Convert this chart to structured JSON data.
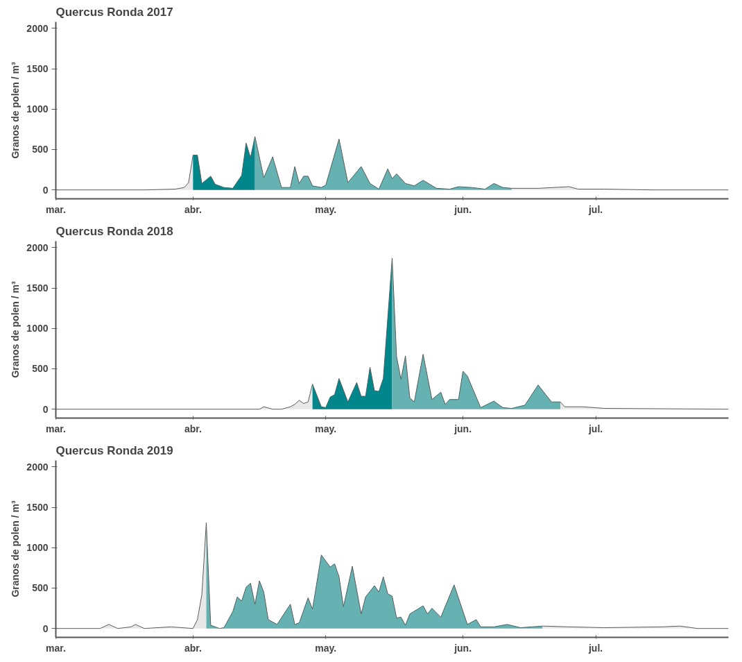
{
  "chart_data": [
    {
      "type": "area",
      "title": "Quercus Ronda 2017",
      "ylabel": "Granos de polen / m³",
      "xlim": [
        "2017-03-01",
        "2017-07-31"
      ],
      "ylim": [
        -110,
        2080
      ],
      "yticks": [
        0,
        500,
        1000,
        1500,
        2000
      ],
      "xticks": [
        {
          "value": "2017-03-01",
          "label": "mar."
        },
        {
          "value": "2017-04-01",
          "label": "abr."
        },
        {
          "value": "2017-05-01",
          "label": "may."
        },
        {
          "value": "2017-06-01",
          "label": "jun."
        },
        {
          "value": "2017-07-01",
          "label": "jul."
        }
      ],
      "series": [
        {
          "color": "#e8e8e8",
          "x": [
            "2017-03-01",
            "2017-03-21",
            "2017-03-28",
            "2017-03-30",
            "2017-03-31",
            "2017-04-01"
          ],
          "values": [
            0,
            0,
            10,
            30,
            90,
            430
          ]
        },
        {
          "color": "#00868b",
          "x": [
            "2017-04-01",
            "2017-04-02",
            "2017-04-03",
            "2017-04-05",
            "2017-04-06",
            "2017-04-08",
            "2017-04-10",
            "2017-04-12",
            "2017-04-13",
            "2017-04-14",
            "2017-04-15"
          ],
          "values": [
            430,
            430,
            80,
            170,
            70,
            30,
            20,
            180,
            580,
            400,
            660
          ]
        },
        {
          "color": "#66b2b2",
          "x": [
            "2017-04-15",
            "2017-04-17",
            "2017-04-19",
            "2017-04-21",
            "2017-04-23",
            "2017-04-24",
            "2017-04-25",
            "2017-04-26",
            "2017-04-27",
            "2017-04-28",
            "2017-04-30",
            "2017-05-01",
            "2017-05-04",
            "2017-05-06",
            "2017-05-09",
            "2017-05-11",
            "2017-05-13",
            "2017-05-15",
            "2017-05-16",
            "2017-05-17",
            "2017-05-19",
            "2017-05-21",
            "2017-05-23",
            "2017-05-26",
            "2017-05-29",
            "2017-05-31",
            "2017-06-03",
            "2017-06-06",
            "2017-06-08",
            "2017-06-10",
            "2017-06-12"
          ],
          "values": [
            660,
            150,
            410,
            30,
            30,
            290,
            80,
            170,
            170,
            50,
            30,
            60,
            630,
            90,
            290,
            80,
            10,
            260,
            140,
            200,
            80,
            50,
            120,
            20,
            10,
            40,
            30,
            10,
            80,
            30,
            20
          ]
        },
        {
          "color": "#e8e8e8",
          "x": [
            "2017-06-12",
            "2017-06-18",
            "2017-06-25",
            "2017-06-27",
            "2017-07-03",
            "2017-07-14",
            "2017-07-31"
          ],
          "values": [
            20,
            20,
            40,
            10,
            10,
            0,
            0
          ]
        }
      ]
    },
    {
      "type": "area",
      "title": "Quercus Ronda 2018",
      "ylabel": "Granos de polen / m³",
      "xlim": [
        "2018-03-01",
        "2018-07-31"
      ],
      "ylim": [
        -110,
        2080
      ],
      "yticks": [
        0,
        500,
        1000,
        1500,
        2000
      ],
      "xticks": [
        {
          "value": "2018-03-01",
          "label": "mar."
        },
        {
          "value": "2018-04-01",
          "label": "abr."
        },
        {
          "value": "2018-05-01",
          "label": "may."
        },
        {
          "value": "2018-06-01",
          "label": "jun."
        },
        {
          "value": "2018-07-01",
          "label": "jul."
        }
      ],
      "series": [
        {
          "color": "#e8e8e8",
          "x": [
            "2018-03-01",
            "2018-04-16",
            "2018-04-17",
            "2018-04-19",
            "2018-04-21",
            "2018-04-23",
            "2018-04-24",
            "2018-04-25",
            "2018-04-26",
            "2018-04-27",
            "2018-04-28"
          ],
          "values": [
            0,
            0,
            30,
            0,
            0,
            30,
            60,
            110,
            70,
            90,
            310
          ]
        },
        {
          "color": "#00868b",
          "x": [
            "2018-04-28",
            "2018-04-30",
            "2018-05-01",
            "2018-05-02",
            "2018-05-03",
            "2018-05-04",
            "2018-05-06",
            "2018-05-08",
            "2018-05-09",
            "2018-05-10",
            "2018-05-11",
            "2018-05-12",
            "2018-05-13",
            "2018-05-14",
            "2018-05-16"
          ],
          "values": [
            310,
            30,
            20,
            150,
            180,
            380,
            90,
            330,
            160,
            160,
            520,
            230,
            220,
            380,
            1870
          ]
        },
        {
          "color": "#66b2b2",
          "x": [
            "2018-05-16",
            "2018-05-17",
            "2018-05-18",
            "2018-05-19",
            "2018-05-20",
            "2018-05-21",
            "2018-05-23",
            "2018-05-25",
            "2018-05-27",
            "2018-05-28",
            "2018-05-29",
            "2018-05-31",
            "2018-06-01",
            "2018-06-02",
            "2018-06-05",
            "2018-06-08",
            "2018-06-10",
            "2018-06-12",
            "2018-06-15",
            "2018-06-18",
            "2018-06-21",
            "2018-06-23"
          ],
          "values": [
            1870,
            650,
            370,
            660,
            140,
            90,
            680,
            120,
            210,
            60,
            120,
            120,
            470,
            410,
            20,
            100,
            20,
            10,
            50,
            300,
            90,
            90
          ]
        },
        {
          "color": "#e8e8e8",
          "x": [
            "2018-06-23",
            "2018-06-24",
            "2018-06-28",
            "2018-07-03",
            "2018-07-31"
          ],
          "values": [
            90,
            30,
            30,
            10,
            0
          ]
        }
      ]
    },
    {
      "type": "area",
      "title": "Quercus Ronda 2019",
      "ylabel": "Granos de polen / m³",
      "xlim": [
        "2019-03-01",
        "2019-07-31"
      ],
      "ylim": [
        -110,
        2080
      ],
      "yticks": [
        0,
        500,
        1000,
        1500,
        2000
      ],
      "xticks": [
        {
          "value": "2019-03-01",
          "label": "mar."
        },
        {
          "value": "2019-04-01",
          "label": "abr."
        },
        {
          "value": "2019-05-01",
          "label": "may."
        },
        {
          "value": "2019-06-01",
          "label": "jun."
        },
        {
          "value": "2019-07-01",
          "label": "jul."
        }
      ],
      "series": [
        {
          "color": "#e8e8e8",
          "x": [
            "2019-03-01",
            "2019-03-11",
            "2019-03-13",
            "2019-03-15",
            "2019-03-18",
            "2019-03-19",
            "2019-03-21",
            "2019-03-27",
            "2019-04-01",
            "2019-04-02",
            "2019-04-03",
            "2019-04-04"
          ],
          "values": [
            0,
            0,
            50,
            0,
            20,
            50,
            0,
            20,
            0,
            110,
            420,
            1310
          ]
        },
        {
          "color": "#66b2b2",
          "x": [
            "2019-04-04",
            "2019-04-05",
            "2019-04-07",
            "2019-04-08",
            "2019-04-10",
            "2019-04-11",
            "2019-04-12",
            "2019-04-13",
            "2019-04-14",
            "2019-04-15",
            "2019-04-16",
            "2019-04-17",
            "2019-04-18",
            "2019-04-20",
            "2019-04-23",
            "2019-04-24",
            "2019-04-25",
            "2019-04-27",
            "2019-04-28",
            "2019-04-30",
            "2019-05-02",
            "2019-05-03",
            "2019-05-04",
            "2019-05-05",
            "2019-05-07",
            "2019-05-09",
            "2019-05-10",
            "2019-05-12",
            "2019-05-13",
            "2019-05-14",
            "2019-05-15",
            "2019-05-16",
            "2019-05-17",
            "2019-05-18",
            "2019-05-19",
            "2019-05-20",
            "2019-05-23",
            "2019-05-24",
            "2019-05-25",
            "2019-05-27",
            "2019-05-30",
            "2019-06-02",
            "2019-06-04",
            "2019-06-05",
            "2019-06-08",
            "2019-06-11",
            "2019-06-14",
            "2019-06-19"
          ],
          "values": [
            1310,
            40,
            0,
            10,
            210,
            390,
            340,
            510,
            560,
            300,
            590,
            450,
            110,
            50,
            300,
            50,
            70,
            380,
            240,
            910,
            760,
            800,
            640,
            270,
            770,
            180,
            390,
            530,
            450,
            640,
            430,
            400,
            130,
            140,
            40,
            180,
            280,
            180,
            250,
            140,
            540,
            50,
            110,
            20,
            20,
            50,
            10,
            30
          ]
        },
        {
          "color": "#e8e8e8",
          "x": [
            "2019-06-19",
            "2019-06-25",
            "2019-07-03",
            "2019-07-16",
            "2019-07-20",
            "2019-07-24",
            "2019-07-31"
          ],
          "values": [
            30,
            20,
            10,
            20,
            30,
            0,
            0
          ]
        }
      ]
    }
  ]
}
